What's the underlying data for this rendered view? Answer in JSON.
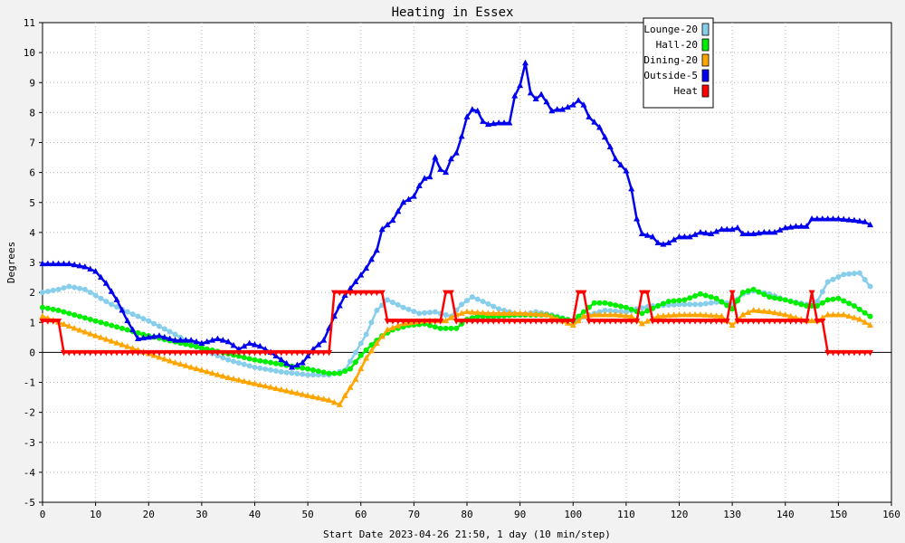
{
  "chart_data": {
    "type": "line",
    "title": "Heating in Essex",
    "xlabel": "Start Date 2023-04-26 21:50, 1 day (10 min/step)",
    "ylabel": "Degrees",
    "xlim": [
      0,
      160
    ],
    "ylim": [
      -5,
      11
    ],
    "xticks": [
      0,
      10,
      20,
      30,
      40,
      50,
      60,
      70,
      80,
      90,
      100,
      110,
      120,
      130,
      140,
      150,
      160
    ],
    "yticks": [
      -5,
      -4,
      -3,
      -2,
      -1,
      0,
      1,
      2,
      3,
      4,
      5,
      6,
      7,
      8,
      9,
      10,
      11
    ],
    "grid": true,
    "legend_position": "top-right",
    "series": [
      {
        "name": "Lounge-20",
        "color": "#87ceeb",
        "marker": "circle",
        "points": [
          [
            0,
            2
          ],
          [
            3,
            2.1
          ],
          [
            5,
            2.2
          ],
          [
            8,
            2.1
          ],
          [
            10,
            1.9
          ],
          [
            13,
            1.6
          ],
          [
            16,
            1.35
          ],
          [
            20,
            1.05
          ],
          [
            25,
            0.6
          ],
          [
            30,
            0.1
          ],
          [
            35,
            -0.25
          ],
          [
            40,
            -0.5
          ],
          [
            45,
            -0.65
          ],
          [
            50,
            -0.75
          ],
          [
            54,
            -0.75
          ],
          [
            57,
            -0.6
          ],
          [
            59,
            0
          ],
          [
            61,
            0.6
          ],
          [
            63,
            1.4
          ],
          [
            65,
            1.75
          ],
          [
            68,
            1.5
          ],
          [
            71,
            1.3
          ],
          [
            74,
            1.35
          ],
          [
            77,
            1.2
          ],
          [
            79,
            1.6
          ],
          [
            81,
            1.85
          ],
          [
            83,
            1.7
          ],
          [
            86,
            1.45
          ],
          [
            90,
            1.25
          ],
          [
            93,
            1.35
          ],
          [
            96,
            1.25
          ],
          [
            100,
            1.05
          ],
          [
            103,
            1.25
          ],
          [
            106,
            1.4
          ],
          [
            110,
            1.35
          ],
          [
            112,
            1.45
          ],
          [
            115,
            1.55
          ],
          [
            120,
            1.6
          ],
          [
            124,
            1.6
          ],
          [
            128,
            1.7
          ],
          [
            130,
            1.6
          ],
          [
            132,
            1.95
          ],
          [
            134,
            2.05
          ],
          [
            137,
            1.95
          ],
          [
            140,
            1.75
          ],
          [
            144,
            1.6
          ],
          [
            146,
            1.7
          ],
          [
            148,
            2.35
          ],
          [
            151,
            2.6
          ],
          [
            154,
            2.65
          ],
          [
            156,
            2.2
          ]
        ]
      },
      {
        "name": "Hall-20",
        "color": "#00ee00",
        "marker": "circle",
        "points": [
          [
            0,
            1.5
          ],
          [
            3,
            1.4
          ],
          [
            6,
            1.25
          ],
          [
            10,
            1.05
          ],
          [
            15,
            0.8
          ],
          [
            20,
            0.55
          ],
          [
            25,
            0.35
          ],
          [
            30,
            0.15
          ],
          [
            35,
            -0.05
          ],
          [
            40,
            -0.25
          ],
          [
            45,
            -0.4
          ],
          [
            50,
            -0.55
          ],
          [
            54,
            -0.7
          ],
          [
            56,
            -0.7
          ],
          [
            58,
            -0.55
          ],
          [
            60,
            -0.1
          ],
          [
            62,
            0.25
          ],
          [
            64,
            0.55
          ],
          [
            66,
            0.75
          ],
          [
            69,
            0.9
          ],
          [
            72,
            0.95
          ],
          [
            75,
            0.8
          ],
          [
            78,
            0.8
          ],
          [
            80,
            1.1
          ],
          [
            82,
            1.2
          ],
          [
            85,
            1.2
          ],
          [
            90,
            1.25
          ],
          [
            95,
            1.25
          ],
          [
            100,
            1.05
          ],
          [
            102,
            1.35
          ],
          [
            104,
            1.65
          ],
          [
            106,
            1.65
          ],
          [
            110,
            1.5
          ],
          [
            113,
            1.3
          ],
          [
            116,
            1.55
          ],
          [
            118,
            1.7
          ],
          [
            121,
            1.75
          ],
          [
            124,
            1.95
          ],
          [
            127,
            1.8
          ],
          [
            130,
            1.45
          ],
          [
            132,
            2
          ],
          [
            134,
            2.1
          ],
          [
            137,
            1.85
          ],
          [
            140,
            1.75
          ],
          [
            144,
            1.55
          ],
          [
            146,
            1.55
          ],
          [
            148,
            1.75
          ],
          [
            150,
            1.8
          ],
          [
            153,
            1.55
          ],
          [
            156,
            1.2
          ]
        ]
      },
      {
        "name": "Dining-20",
        "color": "#ffa500",
        "marker": "triangle",
        "points": [
          [
            0,
            1.2
          ],
          [
            3,
            1
          ],
          [
            6,
            0.8
          ],
          [
            10,
            0.55
          ],
          [
            15,
            0.25
          ],
          [
            20,
            -0.05
          ],
          [
            25,
            -0.35
          ],
          [
            30,
            -0.6
          ],
          [
            35,
            -0.85
          ],
          [
            40,
            -1.05
          ],
          [
            45,
            -1.25
          ],
          [
            50,
            -1.45
          ],
          [
            54,
            -1.6
          ],
          [
            56,
            -1.75
          ],
          [
            57,
            -1.45
          ],
          [
            59,
            -0.9
          ],
          [
            61,
            -0.2
          ],
          [
            63,
            0.3
          ],
          [
            65,
            0.75
          ],
          [
            68,
            0.95
          ],
          [
            72,
            1.05
          ],
          [
            76,
            1.05
          ],
          [
            78,
            1.25
          ],
          [
            80,
            1.35
          ],
          [
            84,
            1.3
          ],
          [
            90,
            1.3
          ],
          [
            95,
            1.25
          ],
          [
            100,
            0.9
          ],
          [
            102,
            1.2
          ],
          [
            104,
            1.25
          ],
          [
            108,
            1.25
          ],
          [
            111,
            1.2
          ],
          [
            113,
            0.95
          ],
          [
            116,
            1.2
          ],
          [
            120,
            1.25
          ],
          [
            124,
            1.25
          ],
          [
            128,
            1.2
          ],
          [
            130,
            0.9
          ],
          [
            132,
            1.25
          ],
          [
            134,
            1.4
          ],
          [
            137,
            1.35
          ],
          [
            140,
            1.25
          ],
          [
            144,
            1.05
          ],
          [
            146,
            1.05
          ],
          [
            148,
            1.25
          ],
          [
            151,
            1.25
          ],
          [
            154,
            1.1
          ],
          [
            156,
            0.9
          ]
        ]
      },
      {
        "name": "Outside-5",
        "color": "#0000ee",
        "marker": "triangle",
        "points": [
          [
            0,
            2.95
          ],
          [
            5,
            2.95
          ],
          [
            8,
            2.85
          ],
          [
            10,
            2.7
          ],
          [
            12,
            2.3
          ],
          [
            14,
            1.75
          ],
          [
            16,
            1.05
          ],
          [
            18,
            0.45
          ],
          [
            20,
            0.5
          ],
          [
            22,
            0.55
          ],
          [
            25,
            0.4
          ],
          [
            28,
            0.4
          ],
          [
            30,
            0.3
          ],
          [
            33,
            0.45
          ],
          [
            35,
            0.35
          ],
          [
            37,
            0.1
          ],
          [
            39,
            0.3
          ],
          [
            41,
            0.2
          ],
          [
            43,
            0
          ],
          [
            45,
            -0.25
          ],
          [
            47,
            -0.5
          ],
          [
            49,
            -0.35
          ],
          [
            51,
            0.1
          ],
          [
            53,
            0.4
          ],
          [
            55,
            1.2
          ],
          [
            57,
            1.9
          ],
          [
            59,
            2.35
          ],
          [
            61,
            2.8
          ],
          [
            63,
            3.4
          ],
          [
            64,
            4.1
          ],
          [
            66,
            4.4
          ],
          [
            68,
            5
          ],
          [
            70,
            5.2
          ],
          [
            71,
            5.55
          ],
          [
            72,
            5.8
          ],
          [
            73,
            5.85
          ],
          [
            74,
            6.5
          ],
          [
            75,
            6.1
          ],
          [
            76,
            6
          ],
          [
            77,
            6.45
          ],
          [
            78,
            6.65
          ],
          [
            79,
            7.2
          ],
          [
            80,
            7.85
          ],
          [
            81,
            8.1
          ],
          [
            82,
            8.05
          ],
          [
            83,
            7.7
          ],
          [
            84,
            7.6
          ],
          [
            86,
            7.65
          ],
          [
            88,
            7.65
          ],
          [
            89,
            8.55
          ],
          [
            90,
            8.9
          ],
          [
            91,
            9.65
          ],
          [
            92,
            8.65
          ],
          [
            93,
            8.45
          ],
          [
            94,
            8.6
          ],
          [
            95,
            8.35
          ],
          [
            96,
            8.05
          ],
          [
            97,
            8.1
          ],
          [
            98,
            8.1
          ],
          [
            100,
            8.25
          ],
          [
            101,
            8.4
          ],
          [
            102,
            8.25
          ],
          [
            103,
            7.85
          ],
          [
            105,
            7.5
          ],
          [
            107,
            6.85
          ],
          [
            108,
            6.45
          ],
          [
            109,
            6.25
          ],
          [
            110,
            6.05
          ],
          [
            111,
            5.45
          ],
          [
            112,
            4.45
          ],
          [
            113,
            3.95
          ],
          [
            115,
            3.85
          ],
          [
            116,
            3.65
          ],
          [
            117,
            3.6
          ],
          [
            118,
            3.65
          ],
          [
            119,
            3.75
          ],
          [
            120,
            3.85
          ],
          [
            122,
            3.85
          ],
          [
            124,
            4
          ],
          [
            126,
            3.95
          ],
          [
            128,
            4.1
          ],
          [
            130,
            4.1
          ],
          [
            131,
            4.15
          ],
          [
            132,
            3.95
          ],
          [
            134,
            3.95
          ],
          [
            136,
            4
          ],
          [
            138,
            4
          ],
          [
            140,
            4.15
          ],
          [
            142,
            4.2
          ],
          [
            144,
            4.2
          ],
          [
            145,
            4.45
          ],
          [
            148,
            4.45
          ],
          [
            150,
            4.45
          ],
          [
            153,
            4.4
          ],
          [
            155,
            4.35
          ],
          [
            156,
            4.25
          ]
        ]
      },
      {
        "name": "Heat",
        "color": "#ff0000",
        "marker": "triangle-down",
        "points": [
          [
            0,
            1.05
          ],
          [
            3,
            1.05
          ],
          [
            4,
            0
          ],
          [
            54,
            0
          ],
          [
            55,
            2
          ],
          [
            64,
            2
          ],
          [
            65,
            1.05
          ],
          [
            75,
            1.05
          ],
          [
            76,
            2
          ],
          [
            77,
            2
          ],
          [
            78,
            1.05
          ],
          [
            100,
            1.05
          ],
          [
            101,
            2
          ],
          [
            102,
            2
          ],
          [
            103,
            1.05
          ],
          [
            112,
            1.05
          ],
          [
            113,
            2
          ],
          [
            114,
            2
          ],
          [
            115,
            1.05
          ],
          [
            129,
            1.05
          ],
          [
            130,
            2
          ],
          [
            131,
            1.05
          ],
          [
            144,
            1.05
          ],
          [
            145,
            2
          ],
          [
            146,
            1.05
          ],
          [
            147,
            1.05
          ],
          [
            148,
            0
          ],
          [
            156,
            0
          ]
        ]
      }
    ]
  }
}
